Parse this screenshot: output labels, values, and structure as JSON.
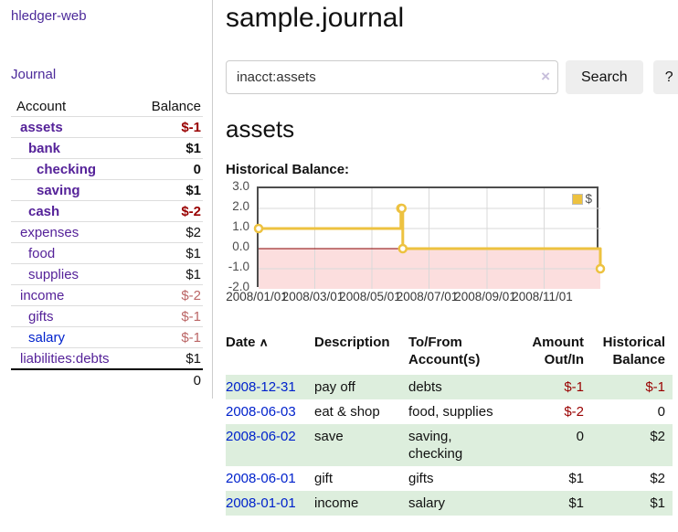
{
  "app": {
    "name": "hledger-web"
  },
  "sidebar": {
    "journal_link": "Journal",
    "accounts_table": {
      "headers": {
        "account": "Account",
        "balance": "Balance"
      },
      "rows": [
        {
          "name": "assets",
          "balance": "$-1"
        },
        {
          "name": "bank",
          "balance": "$1"
        },
        {
          "name": "checking",
          "balance": "0"
        },
        {
          "name": "saving",
          "balance": "$1"
        },
        {
          "name": "cash",
          "balance": "$-2"
        },
        {
          "name": "expenses",
          "balance": "$2"
        },
        {
          "name": "food",
          "balance": "$1"
        },
        {
          "name": "supplies",
          "balance": "$1"
        },
        {
          "name": "income",
          "balance": "$-2"
        },
        {
          "name": "gifts",
          "balance": "$-1"
        },
        {
          "name": "salary",
          "balance": "$-1"
        },
        {
          "name": "liabilities:debts",
          "balance": "$1"
        }
      ],
      "total": "0"
    }
  },
  "main": {
    "title": "sample.journal",
    "search": {
      "value": "inacct:assets",
      "clear_icon": "×",
      "search_button": "Search",
      "help_button": "?"
    },
    "account_heading": "assets",
    "chart_label": "Historical Balance:"
  },
  "chart_data": {
    "type": "line",
    "step": true,
    "title": "Historical Balance",
    "series": [
      {
        "name": "$",
        "color": "#edc240",
        "points": [
          [
            "2008-01-01",
            1
          ],
          [
            "2008-06-01",
            2
          ],
          [
            "2008-06-02",
            2
          ],
          [
            "2008-06-03",
            0
          ],
          [
            "2008-12-31",
            -1
          ]
        ]
      }
    ],
    "x_range": [
      "2008-01-01",
      "2008-12-31"
    ],
    "ylim": [
      -2,
      3
    ],
    "yticks": [
      "3.0",
      "2.0",
      "1.0",
      "0.0",
      "-1.0",
      "-2.0"
    ],
    "xticks": [
      "2008/01/01",
      "2008/03/01",
      "2008/05/01",
      "2008/07/01",
      "2008/09/01",
      "2008/11/01"
    ],
    "legend": {
      "label": "$",
      "position": "top-right"
    },
    "grid": true,
    "colors": {
      "negative_region": "#fcdede",
      "zero_line": "#880000",
      "gridline": "#d9d9d9",
      "plot_border": "#4d4d4d"
    }
  },
  "transactions": {
    "headers": {
      "date": "Date",
      "sort_icon": "∧",
      "description": "Description",
      "accounts": "To/From Account(s)",
      "amount": "Amount Out/In",
      "balance": "Historical Balance"
    },
    "rows": [
      {
        "date": "2008-12-31",
        "description": "pay off",
        "accounts": "debts",
        "amount": "$-1",
        "balance": "$-1"
      },
      {
        "date": "2008-06-03",
        "description": "eat & shop",
        "accounts": "food, supplies",
        "amount": "$-2",
        "balance": "0"
      },
      {
        "date": "2008-06-02",
        "description": "save",
        "accounts": "saving, checking",
        "amount": "0",
        "balance": "$2"
      },
      {
        "date": "2008-06-01",
        "description": "gift",
        "accounts": "gifts",
        "amount": "$1",
        "balance": "$2"
      },
      {
        "date": "2008-01-01",
        "description": "income",
        "accounts": "salary",
        "amount": "$1",
        "balance": "$1"
      }
    ]
  }
}
